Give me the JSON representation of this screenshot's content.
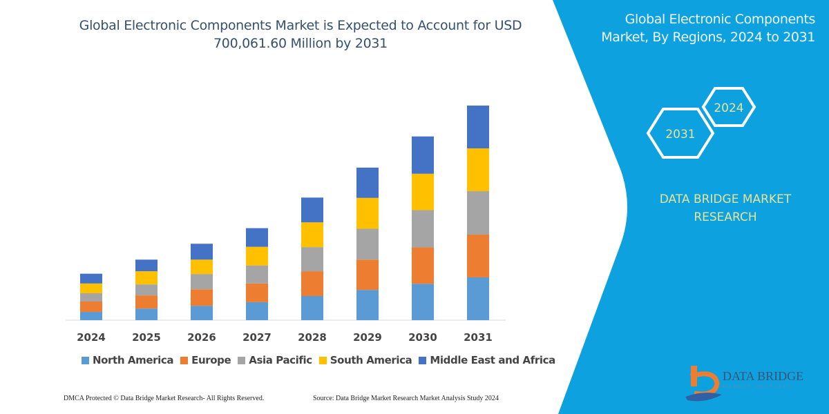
{
  "title": "Global Electronic Components Market is Expected to Account for USD 700,061.60 Million by 2031",
  "title_lines": [
    "Global Electronic Components Market is Expected to Account for USD",
    "700,061.60 Million by 2031"
  ],
  "side_panel": {
    "title_lines": [
      "Global Electronic Components",
      "Market, By Regions, 2024 to 2031"
    ],
    "hex_labels": [
      "2024",
      "2031"
    ],
    "brand_lines": [
      "DATA BRIDGE MARKET",
      "RESEARCH"
    ],
    "logo_name": "DATA BRIDGE",
    "logo_sub": "MARKET RESEARCH",
    "background_color": "#0ea1e0"
  },
  "footer": {
    "left": "DMCA Protected © Data Bridge Market Research-  All Rights Reserved.",
    "right": "Source: Data Bridge Market Research  Market Analysis Study 2024"
  },
  "chart_data": {
    "type": "bar",
    "stacked": true,
    "title": "Global Electronic Components Market is Expected to Account for USD 700,061.60 Million by 2031",
    "xlabel": "",
    "ylabel": "",
    "grid": false,
    "legend_position": "bottom",
    "categories": [
      "2024",
      "2025",
      "2026",
      "2027",
      "2028",
      "2029",
      "2030",
      "2031"
    ],
    "series": [
      {
        "name": "North America",
        "color": "#5b9bd5",
        "values": [
          27000,
          38000,
          47000,
          59000,
          79000,
          99000,
          119000,
          140000
        ]
      },
      {
        "name": "Europe",
        "color": "#ed7d31",
        "values": [
          34000,
          43000,
          54000,
          61000,
          81000,
          99000,
          119000,
          140000
        ]
      },
      {
        "name": "Asia Pacific",
        "color": "#a5a5a5",
        "values": [
          27000,
          36000,
          50000,
          59000,
          79000,
          101000,
          122000,
          142000
        ]
      },
      {
        "name": "South America",
        "color": "#ffc000",
        "values": [
          32000,
          43000,
          47000,
          61000,
          81000,
          101000,
          119000,
          140000
        ]
      },
      {
        "name": "Middle East and Africa",
        "color": "#4472c4",
        "values": [
          32000,
          38000,
          52000,
          61000,
          81000,
          99000,
          122000,
          140000
        ]
      }
    ],
    "ylim": [
      0,
      702000
    ]
  }
}
